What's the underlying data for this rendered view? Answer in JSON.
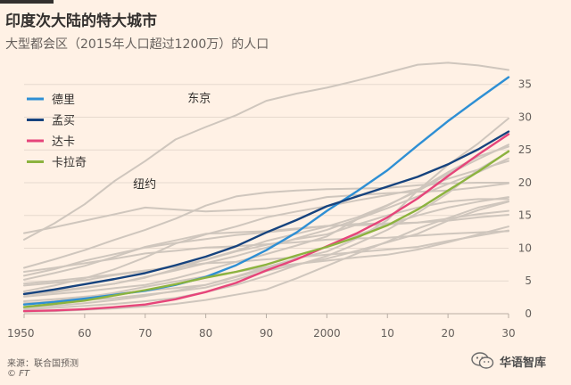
{
  "title": "印度次大陆的特大城市",
  "subtitle": "大型都会区（2015年人口超过1200万）的人口",
  "source": "来源：联合国预测",
  "credit": "© FT",
  "watermark": {
    "label": "华语智库",
    "icon": "wechat-icon"
  },
  "colors": {
    "background": "#fff1e5",
    "grid": "#e6d9ce",
    "grey": "#cfc6bd",
    "tick": "#66605c"
  },
  "chart_data": {
    "type": "line",
    "title": "印度次大陆的特大城市",
    "subtitle": "大型都会区（2015年人口超过1200万）的人口",
    "xlabel": "",
    "ylabel": "",
    "xlim": [
      1950,
      2030
    ],
    "ylim": [
      0,
      37
    ],
    "x_ticks": [
      1950,
      1960,
      1970,
      1980,
      1990,
      2000,
      2010,
      2020,
      2030
    ],
    "x_tick_labels": [
      "1950",
      "60",
      "70",
      "80",
      "90",
      "2000",
      "10",
      "20",
      "30"
    ],
    "y_ticks": [
      0,
      5,
      10,
      15,
      20,
      25,
      30,
      35
    ],
    "y_tick_labels": [
      "0",
      "5",
      "10",
      "15",
      "20",
      "25",
      "30",
      "35"
    ],
    "x": [
      1950,
      1955,
      1960,
      1965,
      1970,
      1975,
      1980,
      1985,
      1990,
      1995,
      2000,
      2005,
      2010,
      2015,
      2020,
      2025,
      2030
    ],
    "grid": true,
    "legend_position": "top-left",
    "series": [
      {
        "name": "德里",
        "color": "#2e8fd4",
        "values": [
          1.4,
          1.8,
          2.3,
          2.9,
          3.5,
          4.4,
          5.6,
          7.4,
          9.7,
          12.4,
          15.7,
          18.7,
          21.9,
          25.7,
          29.4,
          32.8,
          36.1
        ]
      },
      {
        "name": "孟买",
        "color": "#16437e",
        "values": [
          3.0,
          3.7,
          4.5,
          5.3,
          6.2,
          7.4,
          8.7,
          10.3,
          12.4,
          14.3,
          16.4,
          17.9,
          19.4,
          20.9,
          22.8,
          25.1,
          27.8
        ]
      },
      {
        "name": "达卡",
        "color": "#e6457a",
        "values": [
          0.4,
          0.5,
          0.7,
          1.0,
          1.4,
          2.2,
          3.3,
          4.7,
          6.6,
          8.3,
          10.3,
          12.3,
          14.7,
          17.6,
          21.0,
          24.3,
          27.4
        ]
      },
      {
        "name": "卡拉奇",
        "color": "#8cb33f",
        "values": [
          1.0,
          1.5,
          2.0,
          2.8,
          3.6,
          4.5,
          5.5,
          6.4,
          7.5,
          8.9,
          10.2,
          11.7,
          13.5,
          15.9,
          18.8,
          21.7,
          24.8
        ]
      }
    ],
    "background_series": [
      {
        "values": [
          11.3,
          13.8,
          16.7,
          20.3,
          23.3,
          26.6,
          28.5,
          30.3,
          32.5,
          33.6,
          34.5,
          35.6,
          36.8,
          38.0,
          38.3,
          37.9,
          37.2
        ]
      },
      {
        "values": [
          12.3,
          13.2,
          14.2,
          15.2,
          16.2,
          15.9,
          15.6,
          15.8,
          16.1,
          16.9,
          17.8,
          18.1,
          18.4,
          18.6,
          18.8,
          19.3,
          19.9
        ]
      },
      {
        "values": [
          7.0,
          8.3,
          9.7,
          11.3,
          12.8,
          14.5,
          16.5,
          17.9,
          18.5,
          18.8,
          19.0,
          19.1,
          19.2,
          19.6,
          19.9,
          20.0,
          20.0
        ]
      },
      {
        "values": [
          5.2,
          6.2,
          7.3,
          8.7,
          10.2,
          11.2,
          12.2,
          12.4,
          12.6,
          13.0,
          13.4,
          13.5,
          13.6,
          13.9,
          14.5,
          15.2,
          15.7
        ]
      },
      {
        "values": [
          3.4,
          4.3,
          5.4,
          6.8,
          8.6,
          10.7,
          12.1,
          13.3,
          14.7,
          15.6,
          16.4,
          17.3,
          18.1,
          19.0,
          20.6,
          22.0,
          23.3
        ]
      },
      {
        "values": [
          4.6,
          5.0,
          5.5,
          6.0,
          6.6,
          7.1,
          7.7,
          7.9,
          8.3,
          8.6,
          9.0,
          9.4,
          9.8,
          10.2,
          11.1,
          11.9,
          12.7
        ]
      },
      {
        "values": [
          6.4,
          7.0,
          7.7,
          8.4,
          9.2,
          9.6,
          10.1,
          10.3,
          10.6,
          10.9,
          11.3,
          11.5,
          11.6,
          11.9,
          12.2,
          12.4,
          12.6
        ]
      },
      {
        "values": [
          3.1,
          3.5,
          4.0,
          4.6,
          5.5,
          6.8,
          8.3,
          9.6,
          11.1,
          12.2,
          13.3,
          14.7,
          16.6,
          18.7,
          21.3,
          23.6,
          25.8
        ]
      },
      {
        "values": [
          2.9,
          3.3,
          3.9,
          4.6,
          5.6,
          6.6,
          7.7,
          8.8,
          10.1,
          11.5,
          12.8,
          14.4,
          16.1,
          17.9,
          19.8,
          21.6,
          23.7
        ]
      },
      {
        "values": [
          5.8,
          6.8,
          8.1,
          9.1,
          10.1,
          10.8,
          11.4,
          12.0,
          12.4,
          12.9,
          13.4,
          13.7,
          13.8,
          13.9,
          14.2,
          14.7,
          15.1
        ]
      },
      {
        "values": [
          4.3,
          4.7,
          5.1,
          5.9,
          6.5,
          7.3,
          8.2,
          9.5,
          10.5,
          11.4,
          12.1,
          13.6,
          15.0,
          16.2,
          17.1,
          17.5,
          17.5
        ]
      },
      {
        "values": [
          2.6,
          3.0,
          3.4,
          3.9,
          4.4,
          5.4,
          6.6,
          7.9,
          9.1,
          10.4,
          11.8,
          14.4,
          16.5,
          18.9,
          21.6,
          24.0,
          25.5
        ]
      },
      {
        "values": [
          1.9,
          2.2,
          2.6,
          3.0,
          3.5,
          3.9,
          4.4,
          5.6,
          6.8,
          8.3,
          10.3,
          12.0,
          13.6,
          15.0,
          16.2,
          17.1,
          17.8
        ]
      },
      {
        "values": [
          1.0,
          1.2,
          1.6,
          2.1,
          2.7,
          3.5,
          4.4,
          5.7,
          7.1,
          8.4,
          9.5,
          11.5,
          14.3,
          18.8,
          22.7,
          26.0,
          29.8
        ]
      },
      {
        "values": [
          0.7,
          0.9,
          1.2,
          1.5,
          1.9,
          2.4,
          3.3,
          4.4,
          5.8,
          7.4,
          8.8,
          10.7,
          12.8,
          15.4,
          18.4,
          22.0,
          24.7
        ]
      },
      {
        "values": [
          1.6,
          1.8,
          2.1,
          2.4,
          2.9,
          3.4,
          4.0,
          5.2,
          6.5,
          7.5,
          8.4,
          9.6,
          10.9,
          12.2,
          14.2,
          15.8,
          17.1
        ]
      },
      {
        "values": [
          0.3,
          0.4,
          0.6,
          0.8,
          1.1,
          1.5,
          2.1,
          2.9,
          3.7,
          5.4,
          7.3,
          9.2,
          11.0,
          13.0,
          14.6,
          16.2,
          17.2
        ]
      },
      {
        "values": [
          1.5,
          1.9,
          2.5,
          3.2,
          4.1,
          4.9,
          5.7,
          6.4,
          7.1,
          7.6,
          8.1,
          8.6,
          9.0,
          9.8,
          10.9,
          12.1,
          13.3
        ]
      }
    ],
    "annotations": [
      {
        "text": "东京",
        "x": 1977,
        "y": 32.3
      },
      {
        "text": "纽约",
        "x": 1968,
        "y": 19.2
      }
    ]
  }
}
